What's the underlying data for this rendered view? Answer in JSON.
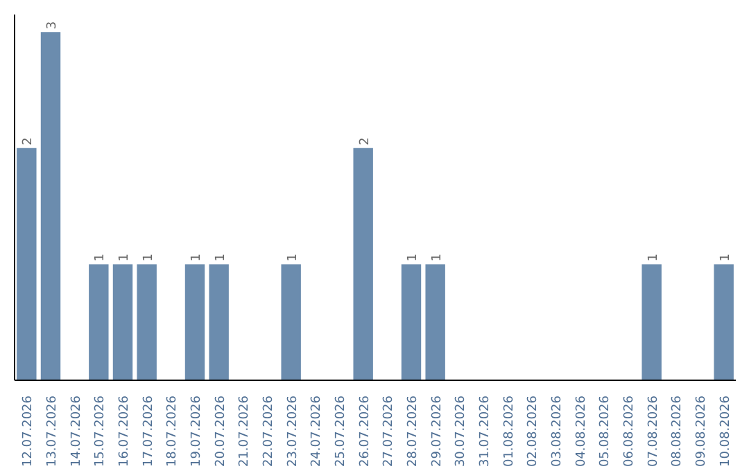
{
  "chart_data": {
    "type": "bar",
    "categories": [
      "12.07.2026",
      "13.07.2026",
      "14.07.2026",
      "15.07.2026",
      "16.07.2026",
      "17.07.2026",
      "18.07.2026",
      "19.07.2026",
      "20.07.2026",
      "21.07.2026",
      "22.07.2026",
      "23.07.2026",
      "24.07.2026",
      "25.07.2026",
      "26.07.2026",
      "27.07.2026",
      "28.07.2026",
      "29.07.2026",
      "30.07.2026",
      "31.07.2026",
      "01.08.2026",
      "02.08.2026",
      "03.08.2026",
      "04.08.2026",
      "05.08.2026",
      "06.08.2026",
      "07.08.2026",
      "08.08.2026",
      "09.08.2026",
      "10.08.2026"
    ],
    "values": [
      2,
      3,
      0,
      1,
      1,
      1,
      0,
      1,
      1,
      0,
      0,
      1,
      0,
      0,
      2,
      0,
      1,
      1,
      0,
      0,
      0,
      0,
      0,
      0,
      0,
      0,
      1,
      0,
      0,
      1
    ],
    "value_labels": [
      "2",
      "3",
      null,
      "1",
      "1",
      "1",
      null,
      "1",
      "1",
      null,
      null,
      "1",
      null,
      null,
      "2",
      null,
      "1",
      "1",
      null,
      null,
      null,
      null,
      null,
      null,
      null,
      null,
      "1",
      null,
      null,
      "1"
    ],
    "color": "#6b8cae",
    "grid": false
  }
}
